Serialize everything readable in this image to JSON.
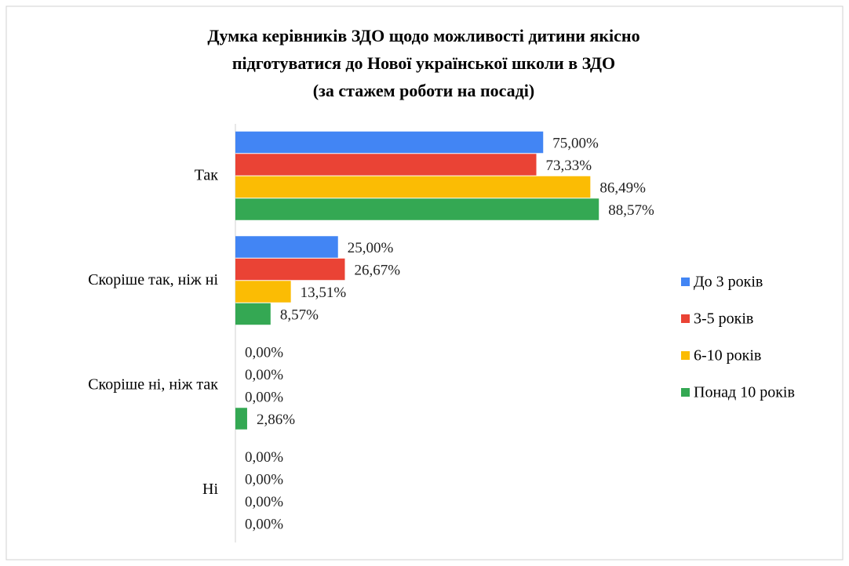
{
  "chart_data": {
    "type": "hbar",
    "title": [
      "Думка керівників ЗДО щодо можливості дитини якісно",
      "підготуватися до Нової української школи в ЗДО",
      "(за стажем роботи на посаді)"
    ],
    "categories": [
      "Так",
      "Скоріше так, ніж ні",
      "Скоріше ні, ніж так",
      "Ні"
    ],
    "series": [
      {
        "name": "До 3 років",
        "color": "#4285f4",
        "values": [
          75.0,
          25.0,
          0,
          0
        ],
        "value_labels": [
          "75,00%",
          "25,00%",
          "0,00%",
          "0,00%"
        ]
      },
      {
        "name": "3-5 років",
        "color": "#ea4335",
        "values": [
          73.33,
          26.67,
          0,
          0
        ],
        "value_labels": [
          "73,33%",
          "26,67%",
          "0,00%",
          "0,00%"
        ]
      },
      {
        "name": "6-10 років",
        "color": "#fbbc04",
        "values": [
          86.49,
          13.51,
          0,
          0
        ],
        "value_labels": [
          "86,49%",
          "13,51%",
          "0,00%",
          "0,00%"
        ]
      },
      {
        "name": "Понад 10 років",
        "color": "#34a853",
        "values": [
          88.57,
          8.57,
          2.86,
          0
        ],
        "value_labels": [
          "88,57%",
          "8,57%",
          "2,86%",
          "0,00%"
        ]
      }
    ],
    "xlim": [
      0,
      100
    ],
    "legend": "right"
  }
}
